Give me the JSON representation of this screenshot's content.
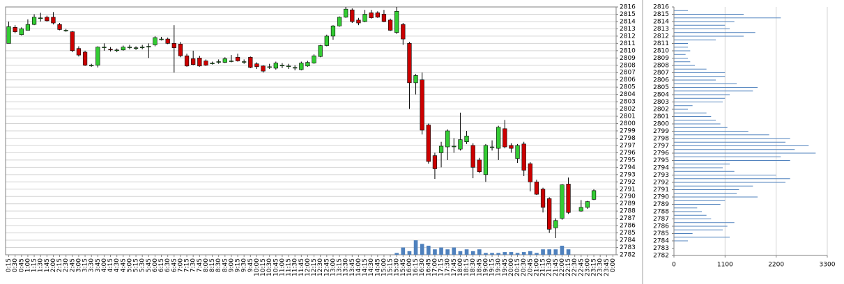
{
  "chart_data": [
    {
      "type": "candlestick",
      "categories": [
        "0:15",
        "0:30",
        "0:45",
        "1:00",
        "1:15",
        "1:30",
        "1:45",
        "2:00",
        "2:15",
        "2:30",
        "2:45",
        "3:00",
        "3:15",
        "3:30",
        "3:45",
        "4:00",
        "4:15",
        "4:30",
        "4:45",
        "5:00",
        "5:15",
        "5:30",
        "5:45",
        "6:00",
        "6:15",
        "6:30",
        "6:45",
        "7:00",
        "7:15",
        "7:30",
        "7:45",
        "8:00",
        "8:15",
        "8:30",
        "8:45",
        "9:00",
        "9:15",
        "9:30",
        "9:45",
        "10:00",
        "10:15",
        "10:30",
        "10:45",
        "11:00",
        "11:15",
        "11:30",
        "11:45",
        "12:00",
        "12:15",
        "12:30",
        "12:45",
        "13:00",
        "13:15",
        "13:30",
        "13:45",
        "14:00",
        "14:15",
        "14:30",
        "14:45",
        "15:00",
        "15:15",
        "15:30",
        "15:45",
        "16:00",
        "16:15",
        "16:30",
        "16:45",
        "17:00",
        "17:15",
        "17:30",
        "17:45",
        "18:00",
        "18:15",
        "18:30",
        "18:45",
        "19:00",
        "19:15",
        "19:30",
        "19:45",
        "20:00",
        "20:15",
        "20:30",
        "20:45",
        "21:00",
        "21:15",
        "21:30",
        "21:45",
        "22:00",
        "22:15",
        "22:30",
        "22:45",
        "23:00",
        "23:15",
        "23:30",
        "23:45",
        "0:00"
      ],
      "open": [
        2811,
        2813.2,
        2812.2,
        2812.8,
        2813.6,
        2814.5,
        2814.6,
        2814.6,
        2813.6,
        2812.8,
        2812.6,
        2810.3,
        2809.8,
        2808,
        2808,
        2810.5,
        2810.2,
        2810.1,
        2810.1,
        2810.5,
        2810.4,
        2810.5,
        2810.6,
        2810.8,
        2811.6,
        2811.6,
        2811,
        2810.9,
        2809.3,
        2808.9,
        2809,
        2808.6,
        2808.3,
        2808.5,
        2808.4,
        2808.6,
        2809.1,
        2808.5,
        2809.1,
        2808.2,
        2807.9,
        2807.8,
        2807.6,
        2808,
        2807.9,
        2807.7,
        2807.4,
        2807.9,
        2808.3,
        2809.2,
        2810.7,
        2812,
        2813.4,
        2814.6,
        2815.6,
        2814.2,
        2814,
        2815.2,
        2815.2,
        2815,
        2814.2,
        2812.5,
        2813.6,
        2811,
        2805.6,
        2806,
        2799.8,
        2795.6,
        2796,
        2796.8,
        2796.9,
        2796.5,
        2797.5,
        2797,
        2795,
        2793,
        2796.8,
        2796.6,
        2799.3,
        2797,
        2795.2,
        2797.2,
        2794.5,
        2792,
        2791,
        2789.7,
        2785.7,
        2787,
        2791.7,
        null,
        2788,
        2788.5,
        2789.6,
        null,
        null,
        null
      ],
      "high": [
        2814,
        2813.5,
        2813.2,
        2814.3,
        2815,
        2815.2,
        2814.8,
        2815.3,
        2813.8,
        2813,
        2812.7,
        2810.6,
        2810,
        2808.2,
        2810.6,
        2811,
        2810.5,
        2810.3,
        2810.7,
        2810.8,
        2810.6,
        2810.8,
        2811,
        2812,
        2811.9,
        2811.8,
        2813.5,
        2811.2,
        2809.6,
        2810,
        2809.3,
        2808.8,
        2808.5,
        2808.8,
        2809.1,
        2809.4,
        2809.6,
        2808.8,
        2809.2,
        2808.4,
        2808,
        2808.2,
        2808.5,
        2808.3,
        2808.2,
        2808,
        2808.5,
        2808.6,
        2809.5,
        2810.8,
        2812.2,
        2813.5,
        2814.7,
        2816,
        2815.8,
        2814.5,
        2815.6,
        2815.6,
        2815.4,
        2815.6,
        2814.4,
        2816,
        2813.8,
        2811.2,
        2806.8,
        2807,
        2800,
        2796,
        2797.5,
        2799.2,
        2798,
        2801.5,
        2799,
        2797.3,
        2795.3,
        2797.2,
        2797.7,
        2799.7,
        2800.5,
        2797.3,
        2797.2,
        2797.5,
        2794.7,
        2792.3,
        2791.2,
        2789.9,
        2787,
        2791.7,
        2792.6,
        null,
        2789.5,
        2789.4,
        2791,
        null,
        null,
        null
      ],
      "low": [
        2811,
        2812.4,
        2812.1,
        2812.8,
        2813.5,
        2814,
        2814,
        2813.6,
        2812.8,
        2812.6,
        2809.8,
        2809.2,
        2807.9,
        2807.8,
        2807.7,
        2810,
        2809.9,
        2809.8,
        2810,
        2810.2,
        2810.1,
        2810.2,
        2809,
        2810.6,
        2811.4,
        2810.9,
        2807,
        2809.1,
        2807.8,
        2808,
        2807.8,
        2807.9,
        2808.1,
        2808.2,
        2808.3,
        2808.4,
        2808.5,
        2808.2,
        2807.6,
        2807.5,
        2807,
        2807.5,
        2807.4,
        2807.6,
        2807.5,
        2807.3,
        2807.3,
        2807.8,
        2808.2,
        2809.1,
        2810.6,
        2811.5,
        2813.3,
        2814.5,
        2813.8,
        2813.5,
        2813.9,
        2814.4,
        2814.5,
        2813.9,
        2812.7,
        2812.3,
        2810.8,
        2802,
        2804,
        2798.5,
        2794.5,
        2792.4,
        2794,
        2795,
        2796,
        2796.3,
        2797.2,
        2792.5,
        2793.2,
        2792,
        2796.3,
        2795,
        2796.6,
        2796,
        2794.6,
        2792.8,
        2790.7,
        2790.2,
        2787.8,
        2785,
        2784.3,
        2786.8,
        2787.6,
        null,
        2787.9,
        2788.3,
        2789.5,
        null,
        null,
        null
      ],
      "close": [
        2813.3,
        2812.6,
        2813,
        2813.6,
        2814.6,
        2814.5,
        2814.1,
        2813.8,
        2812.9,
        2812.8,
        2810,
        2809.4,
        2808,
        2808,
        2810.5,
        2810.5,
        2810.1,
        2810.1,
        2810.5,
        2810.5,
        2810.4,
        2810.5,
        2810.6,
        2811.8,
        2811.6,
        2811,
        2810.4,
        2809.3,
        2807.9,
        2808.1,
        2807.9,
        2808,
        2808.3,
        2808.5,
        2808.9,
        2808.6,
        2808.6,
        2808.5,
        2807.7,
        2807.8,
        2807.2,
        2807.8,
        2808.3,
        2808,
        2807.9,
        2807.7,
        2808.3,
        2808.4,
        2809.3,
        2810.7,
        2812,
        2813.4,
        2814.6,
        2815.7,
        2814,
        2813.8,
        2815,
        2814.5,
        2814.6,
        2814,
        2812.8,
        2815.4,
        2811.6,
        2805.6,
        2806.6,
        2799.1,
        2794.8,
        2793.8,
        2796.9,
        2799,
        2796.9,
        2797.8,
        2798.3,
        2794,
        2793.4,
        2797,
        2796.8,
        2799.5,
        2796.8,
        2796.6,
        2797,
        2793.6,
        2792,
        2790.3,
        2788.5,
        2785.5,
        2786.7,
        2791.6,
        2787.8,
        null,
        2788.5,
        2789.3,
        2790.8,
        null,
        null,
        null
      ],
      "volume": [
        null,
        null,
        null,
        null,
        null,
        null,
        null,
        null,
        null,
        null,
        null,
        null,
        null,
        null,
        null,
        null,
        null,
        null,
        null,
        null,
        null,
        null,
        null,
        null,
        null,
        null,
        null,
        null,
        null,
        null,
        null,
        null,
        null,
        null,
        null,
        null,
        null,
        null,
        null,
        null,
        null,
        null,
        null,
        null,
        null,
        null,
        null,
        null,
        null,
        null,
        null,
        null,
        null,
        null,
        null,
        null,
        null,
        null,
        null,
        null,
        null,
        1,
        4,
        2,
        8,
        6,
        5,
        3,
        4,
        3,
        4,
        2,
        3,
        2,
        3,
        1,
        1,
        1,
        1.5,
        1.5,
        1,
        1.5,
        2,
        1,
        3,
        3,
        3,
        5,
        3,
        null,
        null,
        null,
        null,
        null,
        null,
        null
      ],
      "up_color": "#33cc33",
      "down_color": "#cc0000",
      "volume_color": "#4f81bd",
      "ylim": [
        2782,
        2816
      ],
      "yticks": [
        2782,
        2783,
        2784,
        2785,
        2786,
        2787,
        2788,
        2789,
        2790,
        2791,
        2792,
        2793,
        2794,
        2795,
        2796,
        2797,
        2798,
        2799,
        2800,
        2801,
        2802,
        2803,
        2804,
        2805,
        2806,
        2807,
        2808,
        2809,
        2810,
        2811,
        2812,
        2813,
        2814,
        2815,
        2816
      ],
      "grid": true
    },
    {
      "type": "bar",
      "orientation": "horizontal",
      "color": "#4f81bd",
      "levels": [
        2815.5,
        2815,
        2814.5,
        2814,
        2813.5,
        2813,
        2812.5,
        2812,
        2811.5,
        2811,
        2810.5,
        2810,
        2809.5,
        2809,
        2808.5,
        2808,
        2807.5,
        2807,
        2806.5,
        2806,
        2805.5,
        2805,
        2804.5,
        2804,
        2803.5,
        2803,
        2802.5,
        2802,
        2801.5,
        2801,
        2800.5,
        2800,
        2799.5,
        2799,
        2798.5,
        2798,
        2797.5,
        2797,
        2796.5,
        2796,
        2795.5,
        2795,
        2794.5,
        2794,
        2793.5,
        2793,
        2792.5,
        2792,
        2791.5,
        2791,
        2790.5,
        2790,
        2789.5,
        2789,
        2788.5,
        2788,
        2787.5,
        2787,
        2786.5,
        2786,
        2785.5,
        2785,
        2784.5,
        2784
      ],
      "values": [
        300,
        1500,
        2300,
        1300,
        1100,
        1200,
        1750,
        1500,
        900,
        300,
        300,
        350,
        250,
        300,
        350,
        450,
        700,
        1100,
        1100,
        900,
        1350,
        1800,
        1700,
        1200,
        1100,
        1050,
        400,
        300,
        700,
        800,
        900,
        1000,
        1150,
        1600,
        2050,
        2500,
        2400,
        2900,
        2600,
        3050,
        2300,
        2500,
        1200,
        1050,
        1300,
        2200,
        2500,
        2400,
        1700,
        1400,
        1350,
        1800,
        1100,
        1000,
        500,
        600,
        700,
        800,
        1300,
        1150,
        1050,
        400,
        1200,
        300
      ],
      "xlim": [
        0,
        3300
      ],
      "xticks": [
        0,
        1100,
        2200,
        3300
      ],
      "ylim": [
        2782,
        2816
      ],
      "yticks": [
        2782,
        2783,
        2784,
        2785,
        2786,
        2787,
        2788,
        2789,
        2790,
        2791,
        2792,
        2793,
        2794,
        2795,
        2796,
        2797,
        2798,
        2799,
        2800,
        2801,
        2802,
        2803,
        2804,
        2805,
        2806,
        2807,
        2808,
        2809,
        2810,
        2811,
        2812,
        2813,
        2814,
        2815,
        2816
      ],
      "grid": true
    }
  ]
}
